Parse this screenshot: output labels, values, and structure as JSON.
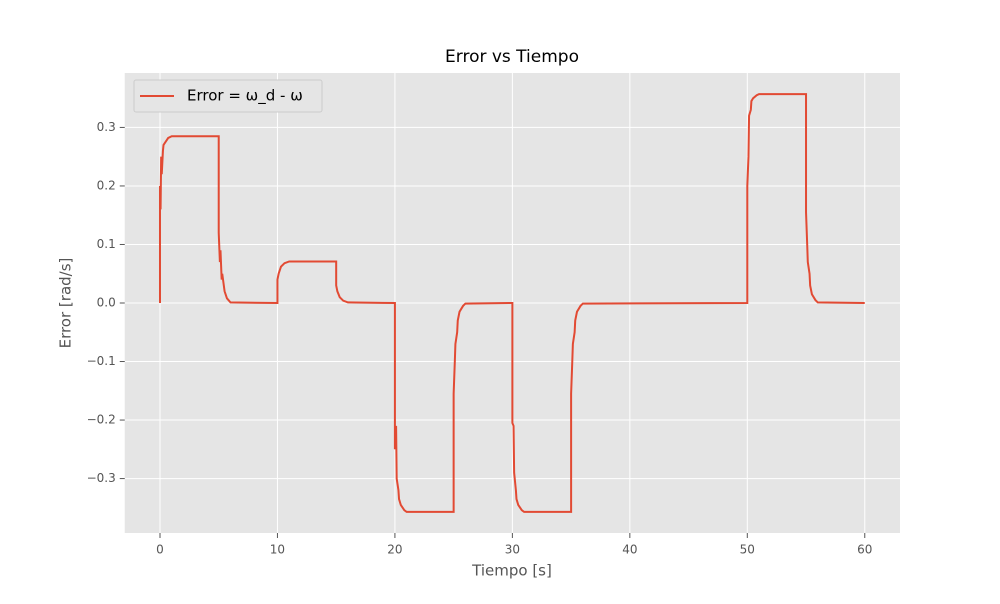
{
  "chart_data": {
    "type": "line",
    "title": "Error vs Tiempo",
    "x_label": "Tiempo [s]",
    "y_label": "Error [rad/s]",
    "series": [
      {
        "name": "Error = ω_d - ω",
        "color": "#E24A33",
        "x": [
          0,
          0,
          0.05,
          0.1,
          0.15,
          0.25,
          0.3,
          0.5,
          0.7,
          1,
          5,
          5,
          5.1,
          5.15,
          5.25,
          5.3,
          5.5,
          5.7,
          6,
          10,
          10,
          10.1,
          10.3,
          10.6,
          11,
          15,
          15,
          15.1,
          15.3,
          15.6,
          16,
          20,
          20,
          20.1,
          20.15,
          20.3,
          20.35,
          20.5,
          20.8,
          21,
          25,
          25,
          25.1,
          25.15,
          25.3,
          25.35,
          25.5,
          25.8,
          26,
          30,
          30,
          30.1,
          30.15,
          30.3,
          30.35,
          30.5,
          30.8,
          31,
          35,
          35,
          35.1,
          35.15,
          35.3,
          35.35,
          35.5,
          35.8,
          36,
          50,
          50,
          50.1,
          50.15,
          50.3,
          50.35,
          50.5,
          50.8,
          51,
          55,
          55,
          55.1,
          55.15,
          55.3,
          55.35,
          55.5,
          55.8,
          56,
          60
        ],
        "values": [
          0,
          0.2,
          0.16,
          0.25,
          0.22,
          0.26,
          0.27,
          0.276,
          0.282,
          0.285,
          0.285,
          0.12,
          0.07,
          0.09,
          0.04,
          0.05,
          0.02,
          0.008,
          0.001,
          0,
          0.04,
          0.05,
          0.062,
          0.068,
          0.071,
          0.071,
          0.03,
          0.02,
          0.01,
          0.004,
          0.001,
          0,
          -0.25,
          -0.21,
          -0.3,
          -0.32,
          -0.335,
          -0.345,
          -0.354,
          -0.357,
          -0.357,
          -0.155,
          -0.1,
          -0.07,
          -0.05,
          -0.03,
          -0.015,
          -0.005,
          -0.001,
          0,
          -0.205,
          -0.21,
          -0.29,
          -0.32,
          -0.335,
          -0.345,
          -0.354,
          -0.357,
          -0.357,
          -0.155,
          -0.1,
          -0.07,
          -0.05,
          -0.03,
          -0.015,
          -0.005,
          -0.001,
          0,
          0.2,
          0.25,
          0.32,
          0.33,
          0.345,
          0.35,
          0.355,
          0.357,
          0.357,
          0.155,
          0.1,
          0.07,
          0.05,
          0.03,
          0.015,
          0.005,
          0.001,
          0
        ]
      }
    ],
    "xlim": [
      -3,
      63
    ],
    "xticks": [
      0,
      10,
      20,
      30,
      40,
      50,
      60
    ],
    "ylim": [
      -0.393,
      0.393
    ],
    "yticks": [
      {
        "value": -0.3,
        "label": "−0.3"
      },
      {
        "value": -0.2,
        "label": "−0.2"
      },
      {
        "value": -0.1,
        "label": "−0.1"
      },
      {
        "value": 0,
        "label": "0.0"
      },
      0.1,
      0.2,
      0.3
    ],
    "grid": true,
    "legend": "upper left"
  }
}
